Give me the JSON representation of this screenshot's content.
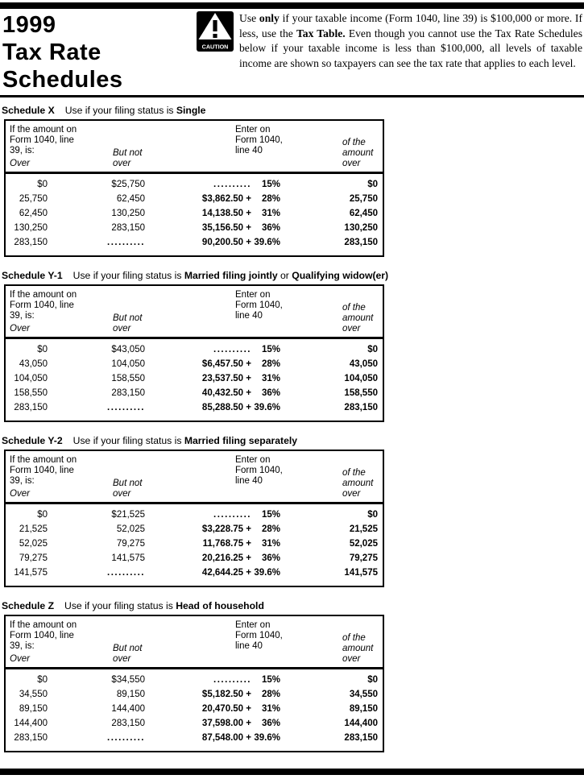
{
  "header": {
    "year": "1999",
    "title_line2": "Tax Rate",
    "title_line3": "Schedules",
    "caution_label": "CAUTION",
    "note": {
      "p1": "Use ",
      "bold1": "only",
      "p2": " if your taxable income (Form 1040, line 39) is $100,000 or more. If less, use the ",
      "bold2": "Tax Table.",
      "p3": " Even though you cannot use the Tax Rate Schedules below if your taxable income is less than $100,000, all levels of taxable income are shown so taxpayers can see the tax rate that applies to each level."
    }
  },
  "table_header": {
    "col1_l1": "If the amount on",
    "col1_l2": "Form 1040, line",
    "col1_l3": "39, is:",
    "col1_over": "Over",
    "col2_l1": "But not",
    "col2_l2": "over",
    "col3_l1": "Enter on",
    "col3_l2": "Form 1040,",
    "col3_l3": "line 40",
    "col4_l1": "of the",
    "col4_l2": "amount",
    "col4_l3": "over"
  },
  "schedules": [
    {
      "name": "Schedule X",
      "use_prefix": "Use if your filing status is ",
      "status1": "Single",
      "conj": "",
      "status2": "",
      "rows": [
        {
          "over": "$0",
          "but_not_over": "$25,750",
          "base": "..........",
          "rate": "15%",
          "of_amount_over": "$0"
        },
        {
          "over": "25,750",
          "but_not_over": "62,450",
          "base": "$3,862.50 +",
          "rate": "28%",
          "of_amount_over": "25,750"
        },
        {
          "over": "62,450",
          "but_not_over": "130,250",
          "base": "14,138.50 +",
          "rate": "31%",
          "of_amount_over": "62,450"
        },
        {
          "over": "130,250",
          "but_not_over": "283,150",
          "base": "35,156.50 +",
          "rate": "36%",
          "of_amount_over": "130,250"
        },
        {
          "over": "283,150",
          "but_not_over": "..........",
          "base": "90,200.50 +",
          "rate": "39.6%",
          "of_amount_over": "283,150"
        }
      ]
    },
    {
      "name": "Schedule Y-1",
      "use_prefix": "Use if your filing status is ",
      "status1": "Married filing jointly",
      "conj": " or ",
      "status2": "Qualifying widow(er)",
      "rows": [
        {
          "over": "$0",
          "but_not_over": "$43,050",
          "base": "..........",
          "rate": "15%",
          "of_amount_over": "$0"
        },
        {
          "over": "43,050",
          "but_not_over": "104,050",
          "base": "$6,457.50 +",
          "rate": "28%",
          "of_amount_over": "43,050"
        },
        {
          "over": "104,050",
          "but_not_over": "158,550",
          "base": "23,537.50 +",
          "rate": "31%",
          "of_amount_over": "104,050"
        },
        {
          "over": "158,550",
          "but_not_over": "283,150",
          "base": "40,432.50 +",
          "rate": "36%",
          "of_amount_over": "158,550"
        },
        {
          "over": "283,150",
          "but_not_over": "..........",
          "base": "85,288.50 +",
          "rate": "39.6%",
          "of_amount_over": "283,150"
        }
      ]
    },
    {
      "name": "Schedule Y-2",
      "use_prefix": "Use if your filing status is ",
      "status1": "Married filing separately",
      "conj": "",
      "status2": "",
      "rows": [
        {
          "over": "$0",
          "but_not_over": "$21,525",
          "base": "..........",
          "rate": "15%",
          "of_amount_over": "$0"
        },
        {
          "over": "21,525",
          "but_not_over": "52,025",
          "base": "$3,228.75 +",
          "rate": "28%",
          "of_amount_over": "21,525"
        },
        {
          "over": "52,025",
          "but_not_over": "79,275",
          "base": "11,768.75 +",
          "rate": "31%",
          "of_amount_over": "52,025"
        },
        {
          "over": "79,275",
          "but_not_over": "141,575",
          "base": "20,216.25 +",
          "rate": "36%",
          "of_amount_over": "79,275"
        },
        {
          "over": "141,575",
          "but_not_over": "..........",
          "base": "42,644.25 +",
          "rate": "39.6%",
          "of_amount_over": "141,575"
        }
      ]
    },
    {
      "name": "Schedule Z",
      "use_prefix": "Use if your filing status is ",
      "status1": "Head of household",
      "conj": "",
      "status2": "",
      "rows": [
        {
          "over": "$0",
          "but_not_over": "$34,550",
          "base": "..........",
          "rate": "15%",
          "of_amount_over": "$0"
        },
        {
          "over": "34,550",
          "but_not_over": "89,150",
          "base": "$5,182.50 +",
          "rate": "28%",
          "of_amount_over": "34,550"
        },
        {
          "over": "89,150",
          "but_not_over": "144,400",
          "base": "20,470.50 +",
          "rate": "31%",
          "of_amount_over": "89,150"
        },
        {
          "over": "144,400",
          "but_not_over": "283,150",
          "base": "37,598.00 +",
          "rate": "36%",
          "of_amount_over": "144,400"
        },
        {
          "over": "283,150",
          "but_not_over": "..........",
          "base": "87,548.00 +",
          "rate": "39.6%",
          "of_amount_over": "283,150"
        }
      ]
    }
  ],
  "layout_tops": [
    "130",
    "335",
    "540",
    "745"
  ],
  "colors": {
    "ink": "#000000",
    "paper": "#ffffff"
  }
}
